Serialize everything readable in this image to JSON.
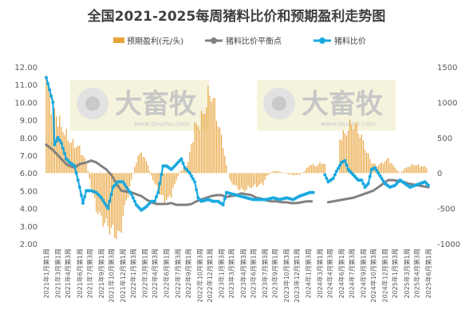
{
  "chart_data": {
    "type": "bar+line",
    "title": "全国2021-2025每周猪料比价和预期盈利走势图",
    "legend": {
      "placement": "top",
      "items": [
        "预期盈利(元/头)",
        "猪料比价平衡点",
        "猪料比价"
      ]
    },
    "colors": {
      "profit": "#E8A33A",
      "breakeven": "#808080",
      "ratio": "#1AA9E0"
    },
    "left_axis": {
      "ylim": [
        2.0,
        12.0
      ],
      "ticks": [
        "2.00",
        "3.00",
        "4.00",
        "5.00",
        "6.00",
        "7.00",
        "8.00",
        "9.00",
        "10.00",
        "11.00",
        "12.00"
      ]
    },
    "right_axis": {
      "ylim": [
        -1000,
        1500
      ],
      "ticks": [
        "-1000",
        "-500",
        "0",
        "500",
        "1000",
        "1500"
      ]
    },
    "x_tick_labels": [
      "2021年1月第1周",
      "2021年3月第1周",
      "2021年4月第3周",
      "2021年6月第1周",
      "2021年7月第3周",
      "2021年9月第1周",
      "2021年10月第3周",
      "2021年12月第1周",
      "2022年1月第3周",
      "2022年3月第1周",
      "2022年4月第3周",
      "2022年6月第1周",
      "2022年7月第3周",
      "2022年9月第1周",
      "2022年10月第3周",
      "2022年12月第1周",
      "2023年1月第3周",
      "2023年3月第1周",
      "2023年4月第3周",
      "2023年6月第1周",
      "2023年7月第3周",
      "2023年9月第1周",
      "2023年10月第3周",
      "2023年12月第1周",
      "2024年1月第3周",
      "2024年3月第1周",
      "2024年4月第3周",
      "2024年6月第1周",
      "2024年7月第3周",
      "2024年9月第1周",
      "2024年10月第3周",
      "2024年12月第1周",
      "2025年1月第3周",
      "2025年3月第1周",
      "2025年4月第3周",
      "2025年6月第1周"
    ],
    "profit_anchors": [
      [
        0,
        1300
      ],
      [
        3,
        1000
      ],
      [
        8,
        700
      ],
      [
        14,
        450
      ],
      [
        20,
        350
      ],
      [
        24,
        150
      ],
      [
        27,
        -200
      ],
      [
        30,
        -500
      ],
      [
        33,
        -650
      ],
      [
        37,
        -750
      ],
      [
        41,
        -850
      ],
      [
        44,
        -900
      ],
      [
        46,
        -600
      ],
      [
        49,
        -300
      ],
      [
        51,
        -100
      ],
      [
        55,
        250
      ],
      [
        58,
        270
      ],
      [
        61,
        100
      ],
      [
        64,
        -100
      ],
      [
        68,
        -300
      ],
      [
        72,
        -400
      ],
      [
        75,
        -300
      ],
      [
        78,
        -100
      ],
      [
        80,
        20
      ],
      [
        82,
        50
      ],
      [
        85,
        150
      ],
      [
        89,
        650
      ],
      [
        92,
        700
      ],
      [
        95,
        900
      ],
      [
        98,
        1150
      ],
      [
        100,
        1050
      ],
      [
        103,
        700
      ],
      [
        106,
        400
      ],
      [
        108,
        100
      ],
      [
        110,
        -100
      ],
      [
        114,
        -200
      ],
      [
        118,
        -250
      ],
      [
        122,
        -200
      ],
      [
        126,
        -180
      ],
      [
        130,
        -150
      ],
      [
        132,
        -50
      ],
      [
        136,
        30
      ],
      [
        140,
        20
      ],
      [
        144,
        -10
      ],
      [
        148,
        -30
      ],
      [
        152,
        -20
      ],
      [
        155,
        30
      ],
      [
        158,
        120
      ],
      [
        162,
        100
      ],
      [
        165,
        150
      ],
      [
        167,
        120
      ],
      [
        169,
        -999
      ],
      [
        174,
        -999
      ],
      [
        176,
        500
      ],
      [
        179,
        550
      ],
      [
        183,
        700
      ],
      [
        186,
        650
      ],
      [
        189,
        500
      ],
      [
        192,
        300
      ],
      [
        195,
        150
      ],
      [
        198,
        100
      ],
      [
        202,
        150
      ],
      [
        205,
        200
      ],
      [
        208,
        100
      ],
      [
        212,
        0
      ],
      [
        216,
        80
      ],
      [
        220,
        120
      ],
      [
        224,
        100
      ],
      [
        228,
        80
      ]
    ],
    "ratio_anchors": [
      [
        0,
        11.4
      ],
      [
        2,
        10.7
      ],
      [
        4,
        10.0
      ],
      [
        5,
        7.6
      ],
      [
        7,
        8.0
      ],
      [
        9,
        7.7
      ],
      [
        12,
        6.8
      ],
      [
        14,
        6.6
      ],
      [
        17,
        6.4
      ],
      [
        20,
        5.2
      ],
      [
        22,
        4.3
      ],
      [
        24,
        5.0
      ],
      [
        27,
        5.0
      ],
      [
        30,
        4.9
      ],
      [
        33,
        4.6
      ],
      [
        35,
        4.3
      ],
      [
        37,
        4.0
      ],
      [
        40,
        5.2
      ],
      [
        43,
        5.5
      ],
      [
        46,
        5.5
      ],
      [
        48,
        5.2
      ],
      [
        51,
        4.8
      ],
      [
        54,
        4.2
      ],
      [
        57,
        3.9
      ],
      [
        60,
        4.1
      ],
      [
        63,
        4.4
      ],
      [
        65,
        4.4
      ],
      [
        67,
        4.9
      ],
      [
        70,
        6.4
      ],
      [
        72,
        6.4
      ],
      [
        75,
        6.2
      ],
      [
        78,
        6.5
      ],
      [
        81,
        6.8
      ],
      [
        83,
        6.3
      ],
      [
        86,
        6.0
      ],
      [
        89,
        5.5
      ],
      [
        91,
        4.6
      ],
      [
        93,
        4.4
      ],
      [
        97,
        4.5
      ],
      [
        100,
        4.4
      ],
      [
        103,
        4.4
      ],
      [
        106,
        4.2
      ],
      [
        108,
        4.9
      ],
      [
        112,
        4.8
      ],
      [
        116,
        4.7
      ],
      [
        120,
        4.6
      ],
      [
        124,
        4.5
      ],
      [
        128,
        4.5
      ],
      [
        132,
        4.5
      ],
      [
        136,
        4.6
      ],
      [
        140,
        4.5
      ],
      [
        144,
        4.6
      ],
      [
        148,
        4.5
      ],
      [
        152,
        4.7
      ],
      [
        155,
        4.8
      ],
      [
        158,
        4.9
      ],
      [
        160,
        4.9
      ],
      [
        162,
        null
      ],
      [
        166,
        null
      ],
      [
        167,
        5.9
      ],
      [
        169,
        5.5
      ],
      [
        172,
        5.7
      ],
      [
        174,
        6.1
      ],
      [
        177,
        6.6
      ],
      [
        179,
        6.7
      ],
      [
        181,
        6.2
      ],
      [
        184,
        5.9
      ],
      [
        187,
        5.6
      ],
      [
        189,
        5.6
      ],
      [
        191,
        5.2
      ],
      [
        193,
        5.4
      ],
      [
        195,
        6.2
      ],
      [
        197,
        6.3
      ],
      [
        199,
        6.0
      ],
      [
        201,
        5.7
      ],
      [
        203,
        5.4
      ],
      [
        206,
        5.2
      ],
      [
        209,
        5.3
      ],
      [
        212,
        5.6
      ],
      [
        215,
        5.4
      ],
      [
        218,
        5.2
      ],
      [
        221,
        5.3
      ],
      [
        224,
        5.4
      ],
      [
        227,
        5.5
      ],
      [
        229,
        5.3
      ]
    ],
    "breakeven_anchors": [
      [
        0,
        7.6
      ],
      [
        4,
        7.3
      ],
      [
        8,
        6.9
      ],
      [
        12,
        6.5
      ],
      [
        14,
        6.4
      ],
      [
        17,
        6.3
      ],
      [
        20,
        6.5
      ],
      [
        24,
        6.6
      ],
      [
        27,
        6.7
      ],
      [
        30,
        6.6
      ],
      [
        33,
        6.4
      ],
      [
        36,
        6.2
      ],
      [
        39,
        5.9
      ],
      [
        42,
        5.4
      ],
      [
        45,
        5.0
      ],
      [
        48,
        4.95
      ],
      [
        51,
        4.9
      ],
      [
        54,
        4.8
      ],
      [
        57,
        4.7
      ],
      [
        60,
        4.5
      ],
      [
        63,
        4.35
      ],
      [
        66,
        4.25
      ],
      [
        69,
        4.25
      ],
      [
        72,
        4.25
      ],
      [
        75,
        4.3
      ],
      [
        78,
        4.2
      ],
      [
        81,
        4.2
      ],
      [
        84,
        4.2
      ],
      [
        87,
        4.25
      ],
      [
        90,
        4.4
      ],
      [
        93,
        4.5
      ],
      [
        96,
        4.6
      ],
      [
        99,
        4.7
      ],
      [
        102,
        4.75
      ],
      [
        105,
        4.75
      ],
      [
        108,
        4.65
      ],
      [
        111,
        4.7
      ],
      [
        114,
        4.75
      ],
      [
        117,
        4.85
      ],
      [
        120,
        4.8
      ],
      [
        123,
        4.75
      ],
      [
        126,
        4.6
      ],
      [
        129,
        4.55
      ],
      [
        132,
        4.45
      ],
      [
        135,
        4.4
      ],
      [
        138,
        4.4
      ],
      [
        141,
        4.35
      ],
      [
        144,
        4.35
      ],
      [
        147,
        4.3
      ],
      [
        150,
        4.3
      ],
      [
        153,
        4.35
      ],
      [
        156,
        4.4
      ],
      [
        159,
        4.4
      ],
      [
        162,
        null
      ],
      [
        168,
        null
      ],
      [
        169,
        4.35
      ],
      [
        172,
        4.4
      ],
      [
        175,
        4.45
      ],
      [
        178,
        4.5
      ],
      [
        181,
        4.55
      ],
      [
        184,
        4.6
      ],
      [
        187,
        4.7
      ],
      [
        190,
        4.8
      ],
      [
        193,
        4.9
      ],
      [
        196,
        5.0
      ],
      [
        199,
        5.2
      ],
      [
        202,
        5.4
      ],
      [
        205,
        5.6
      ],
      [
        208,
        5.6
      ],
      [
        211,
        5.55
      ],
      [
        214,
        5.5
      ],
      [
        217,
        5.4
      ],
      [
        220,
        5.35
      ],
      [
        223,
        5.3
      ],
      [
        226,
        5.25
      ],
      [
        229,
        5.2
      ]
    ],
    "weeks": 230
  },
  "watermarks": [
    {
      "brand": "大畜牧",
      "site": "www.dxumu.com"
    },
    {
      "brand": "大畜牧",
      "site": "www.dxumu.com"
    }
  ]
}
